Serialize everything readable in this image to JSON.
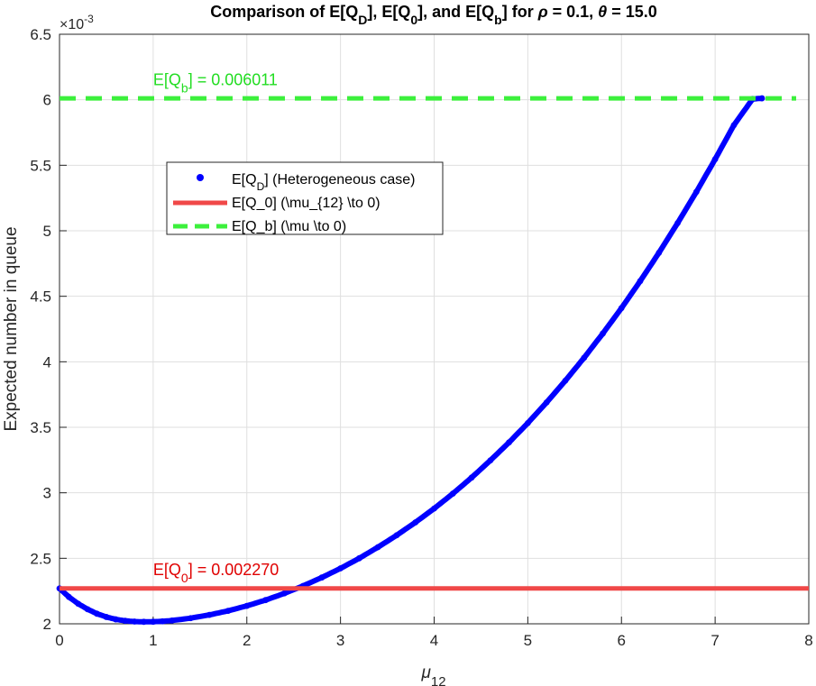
{
  "chart_data": {
    "type": "line",
    "title": {
      "parts": [
        {
          "t": "Comparison of E[Q"
        },
        {
          "t": "D",
          "sub": true
        },
        {
          "t": "], E[Q"
        },
        {
          "t": "0",
          "sub": true
        },
        {
          "t": "], and E[Q"
        },
        {
          "t": "b",
          "sub": true
        },
        {
          "t": "] for "
        },
        {
          "t": "ρ",
          "italic": true
        },
        {
          "t": " = 0.1, "
        },
        {
          "t": "θ",
          "italic": true
        },
        {
          "t": " = 15.0"
        }
      ]
    },
    "xlabel": {
      "main": "μ",
      "sub": "12"
    },
    "ylabel": "Expected number in queue",
    "y_exponent_label": {
      "base": "×10",
      "sup": "-3"
    },
    "xlim": [
      0,
      8
    ],
    "ylim": [
      2.0,
      6.5
    ],
    "x_ticks": [
      0,
      1,
      2,
      3,
      4,
      5,
      6,
      7,
      8
    ],
    "y_ticks": [
      2,
      2.5,
      3,
      3.5,
      4,
      4.5,
      5,
      5.5,
      6,
      6.5
    ],
    "y_tick_labels": [
      "2",
      "2.5",
      "3",
      "3.5",
      "4",
      "4.5",
      "5",
      "5.5",
      "6",
      "6.5"
    ],
    "grid": true,
    "legend_position": "upper-left",
    "series": [
      {
        "name": "E[QD] (Heterogeneous case)",
        "legend_parts": [
          {
            "t": "E[Q"
          },
          {
            "t": "D",
            "sub": true
          },
          {
            "t": "] (Heterogeneous case)"
          }
        ],
        "style": "dots",
        "color": "#0000ff",
        "x": [
          0,
          0.1,
          0.2,
          0.3,
          0.4,
          0.5,
          0.6,
          0.7,
          0.8,
          0.9,
          1.0,
          1.1,
          1.2,
          1.4,
          1.6,
          1.8,
          2.0,
          2.2,
          2.4,
          2.6,
          2.8,
          3.0,
          3.2,
          3.4,
          3.6,
          3.8,
          4.0,
          4.2,
          4.4,
          4.6,
          4.8,
          5.0,
          5.2,
          5.4,
          5.6,
          5.8,
          6.0,
          6.2,
          6.4,
          6.6,
          6.8,
          7.0,
          7.2,
          7.4,
          7.5
        ],
        "y": [
          2.27,
          2.205,
          2.153,
          2.111,
          2.077,
          2.052,
          2.034,
          2.023,
          2.017,
          2.015,
          2.016,
          2.019,
          2.025,
          2.043,
          2.068,
          2.099,
          2.137,
          2.181,
          2.232,
          2.289,
          2.353,
          2.423,
          2.5,
          2.585,
          2.676,
          2.774,
          2.88,
          2.994,
          3.116,
          3.247,
          3.385,
          3.532,
          3.689,
          3.855,
          4.03,
          4.215,
          4.41,
          4.616,
          4.832,
          5.059,
          5.297,
          5.546,
          5.806,
          6.006,
          6.011
        ]
      },
      {
        "name": "E[Q_0] (\\mu_{12} \\to 0)",
        "style": "solid",
        "color": "#f04848",
        "y_const": 2.27
      },
      {
        "name": "E[Q_b] (\\mu \\to 0)",
        "style": "dashed",
        "color": "#3cf03c",
        "y_const": 6.011
      }
    ],
    "annotations": [
      {
        "parts": [
          {
            "t": "E[Q"
          },
          {
            "t": "0",
            "sub": true
          },
          {
            "t": "] = 0.002270"
          }
        ],
        "color": "#e00000",
        "x": 1.0,
        "y": 2.37
      },
      {
        "parts": [
          {
            "t": "E[Q"
          },
          {
            "t": "b",
            "sub": true
          },
          {
            "t": "] = 0.006011"
          }
        ],
        "color": "#22dd22",
        "x": 1.0,
        "y": 6.11
      }
    ]
  }
}
